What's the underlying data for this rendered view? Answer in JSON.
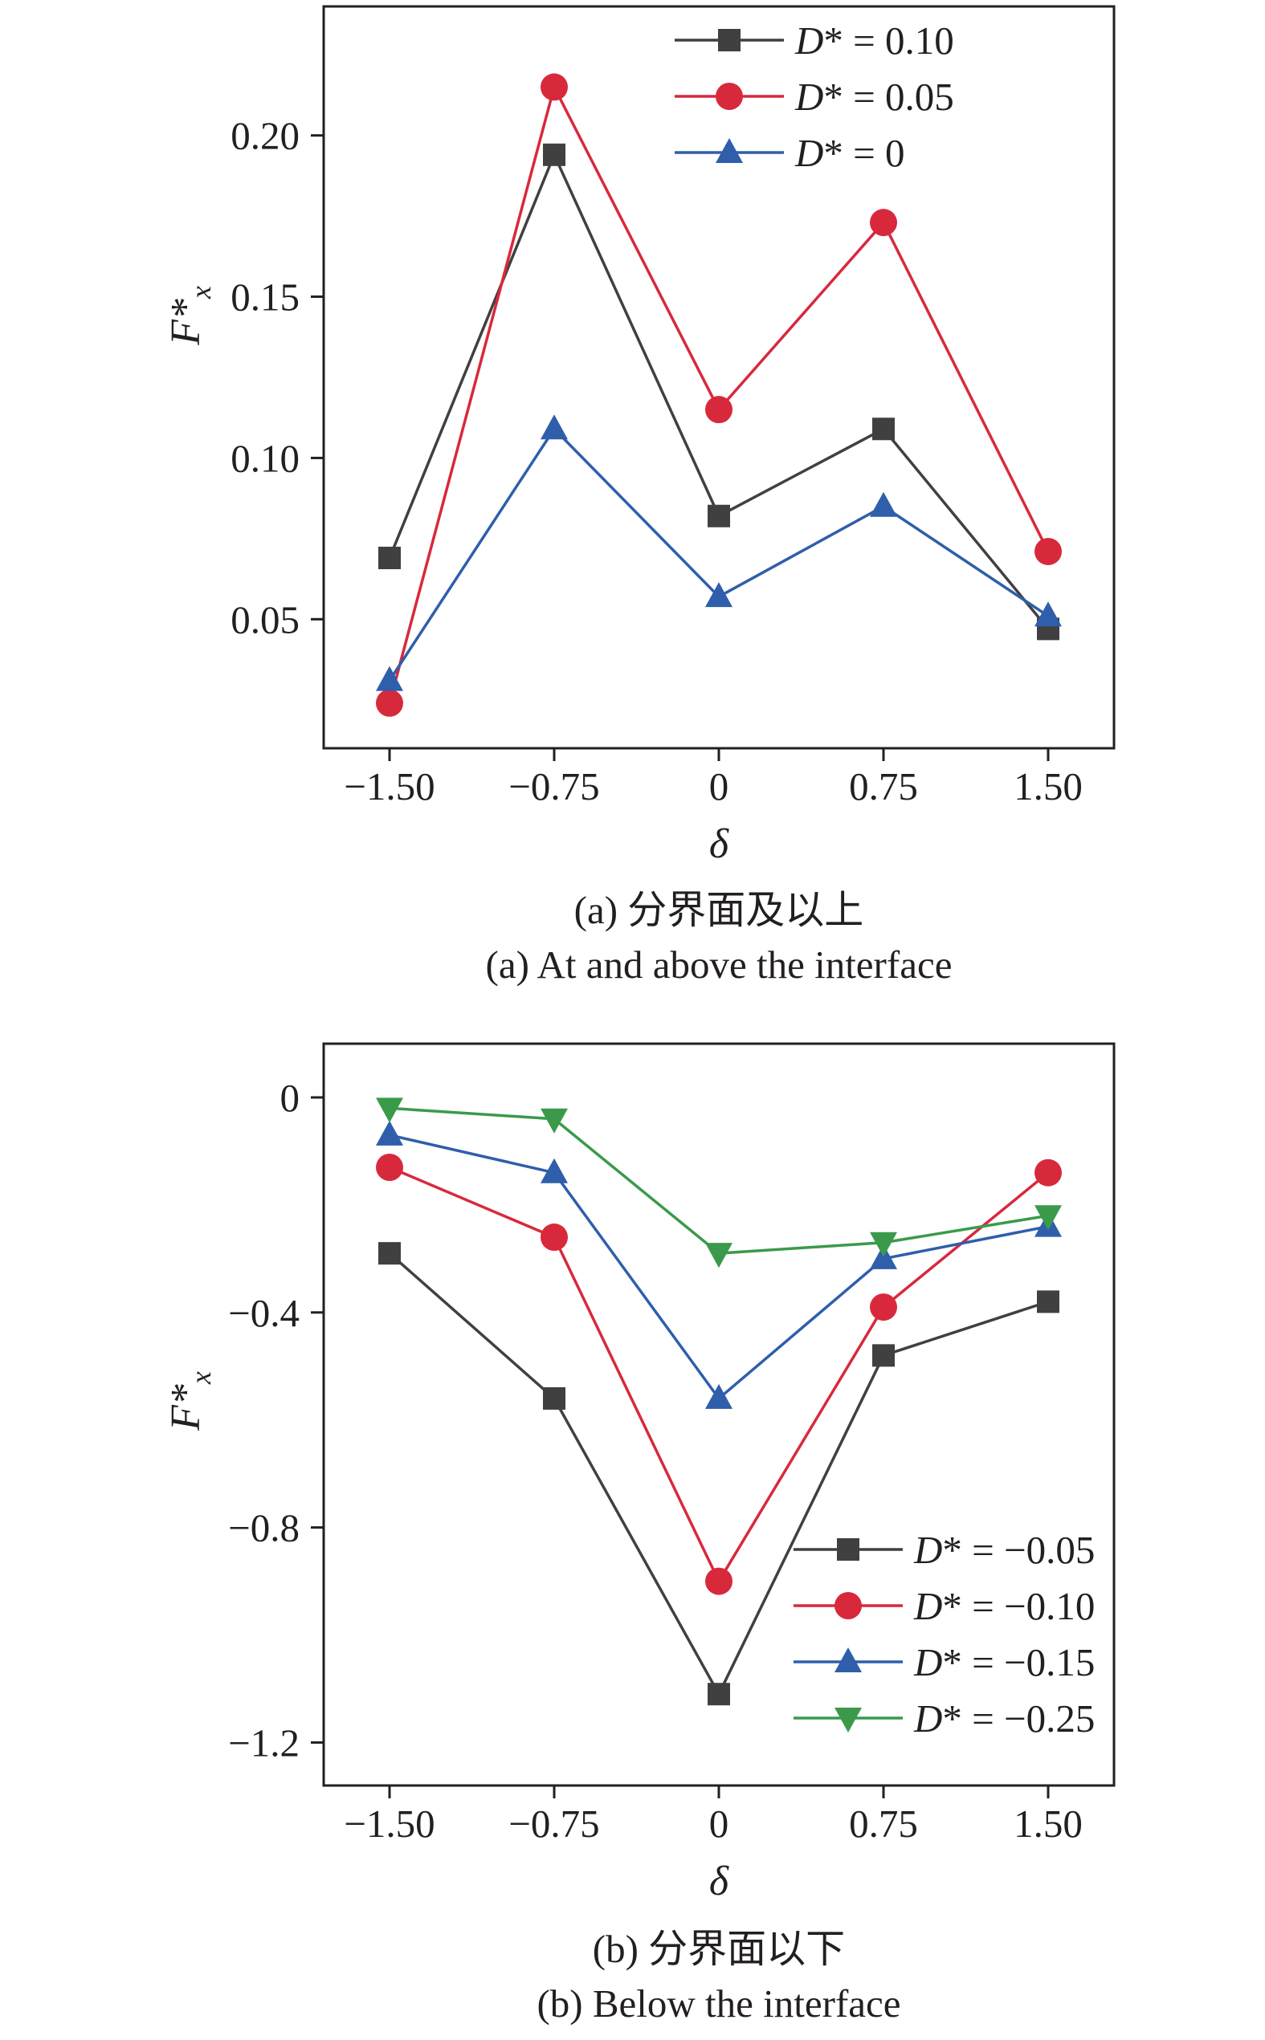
{
  "chart_data": [
    {
      "type": "line",
      "caption_cn": "(a) 分界面及以上",
      "caption_en": "(a) At and above the interface",
      "xlabel": "δ",
      "ylabel_main": "F*",
      "ylabel_sub": "x",
      "x": [
        -1.5,
        -0.75,
        0,
        0.75,
        1.5
      ],
      "xtick_labels": [
        "−1.50",
        "−0.75",
        "0",
        "0.75",
        "1.50"
      ],
      "yticks": [
        0.05,
        0.1,
        0.15,
        0.2
      ],
      "ytick_labels": [
        "0.05",
        "0.10",
        "0.15",
        "0.20"
      ],
      "xlim": [
        -1.8,
        1.8
      ],
      "ylim": [
        0.01,
        0.24
      ],
      "grid": false,
      "legend_position": "top-right",
      "series": [
        {
          "name": "D* = 0.10",
          "legend_prefix": "D",
          "legend_suffix": "* = 0.10",
          "color": "#404040",
          "marker": "square",
          "values": [
            0.069,
            0.194,
            0.082,
            0.109,
            0.047
          ]
        },
        {
          "name": "D* = 0.05",
          "legend_prefix": "D",
          "legend_suffix": "* = 0.05",
          "color": "#d8293c",
          "marker": "circle",
          "values": [
            0.024,
            0.215,
            0.115,
            0.173,
            0.071
          ]
        },
        {
          "name": "D* = 0",
          "legend_prefix": "D",
          "legend_suffix": "* = 0",
          "color": "#2f5eab",
          "marker": "triangle-up",
          "values": [
            0.031,
            0.109,
            0.057,
            0.085,
            0.051
          ]
        }
      ]
    },
    {
      "type": "line",
      "caption_cn": "(b) 分界面以下",
      "caption_en": "(b) Below the interface",
      "xlabel": "δ",
      "ylabel_main": "F*",
      "ylabel_sub": "x",
      "x": [
        -1.5,
        -0.75,
        0,
        0.75,
        1.5
      ],
      "xtick_labels": [
        "−1.50",
        "−0.75",
        "0",
        "0.75",
        "1.50"
      ],
      "yticks": [
        -1.2,
        -0.8,
        -0.4,
        0
      ],
      "ytick_labels": [
        "−1.2",
        "−0.8",
        "−0.4",
        "0"
      ],
      "xlim": [
        -1.8,
        1.8
      ],
      "ylim": [
        -1.28,
        0.1
      ],
      "grid": false,
      "legend_position": "bottom-right",
      "series": [
        {
          "name": "D* = −0.05",
          "legend_prefix": "D",
          "legend_suffix": "* = −0.05",
          "color": "#404040",
          "marker": "square",
          "values": [
            -0.29,
            -0.56,
            -1.11,
            -0.48,
            -0.38
          ]
        },
        {
          "name": "D* = −0.10",
          "legend_prefix": "D",
          "legend_suffix": "* = −0.10",
          "color": "#d8293c",
          "marker": "circle",
          "values": [
            -0.13,
            -0.26,
            -0.9,
            -0.39,
            -0.14
          ]
        },
        {
          "name": "D* = −0.15",
          "legend_prefix": "D",
          "legend_suffix": "* = −0.15",
          "color": "#2f5eab",
          "marker": "triangle-up",
          "values": [
            -0.07,
            -0.14,
            -0.56,
            -0.3,
            -0.24
          ]
        },
        {
          "name": "D* = −0.25",
          "legend_prefix": "D",
          "legend_suffix": "* = −0.25",
          "color": "#3a9a4a",
          "marker": "triangle-down",
          "values": [
            -0.02,
            -0.04,
            -0.29,
            -0.27,
            -0.22
          ]
        }
      ]
    }
  ]
}
